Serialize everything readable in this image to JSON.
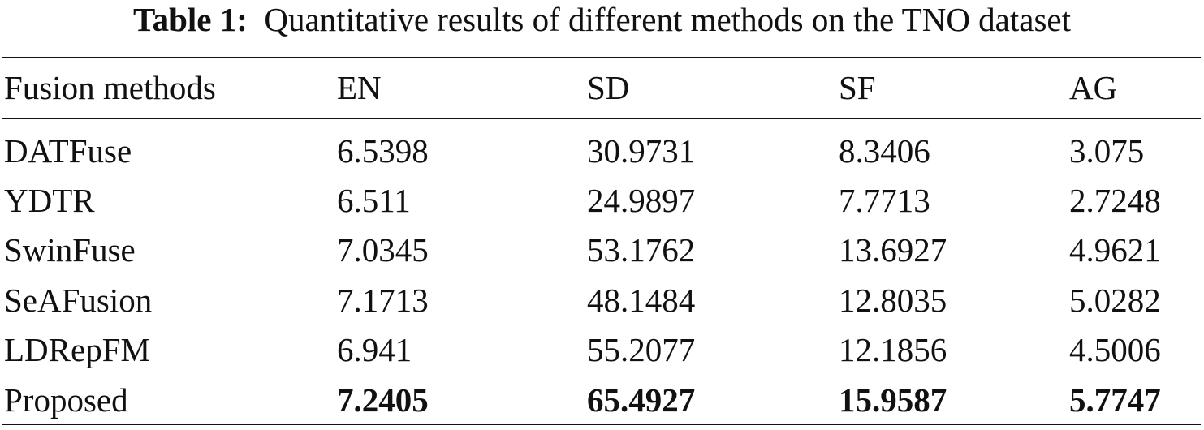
{
  "caption": {
    "label": "Table 1:",
    "text": "Quantitative results of different methods on the TNO dataset"
  },
  "table": {
    "headers": [
      "Fusion methods",
      "EN",
      "SD",
      "SF",
      "AG"
    ],
    "rows": [
      {
        "method": "DATFuse",
        "EN": "6.5398",
        "SD": "30.9731",
        "SF": "8.3406",
        "AG": "3.075"
      },
      {
        "method": "YDTR",
        "EN": "6.511",
        "SD": "24.9897",
        "SF": "7.7713",
        "AG": "2.7248"
      },
      {
        "method": "SwinFuse",
        "EN": "7.0345",
        "SD": "53.1762",
        "SF": "13.6927",
        "AG": "4.9621"
      },
      {
        "method": "SeAFusion",
        "EN": "7.1713",
        "SD": "48.1484",
        "SF": "12.8035",
        "AG": "5.0282"
      },
      {
        "method": "LDRepFM",
        "EN": "6.941",
        "SD": "55.2077",
        "SF": "12.1856",
        "AG": "4.5006"
      },
      {
        "method": "Proposed",
        "EN": "7.2405",
        "SD": "65.4927",
        "SF": "15.9587",
        "AG": "5.7747"
      }
    ]
  }
}
